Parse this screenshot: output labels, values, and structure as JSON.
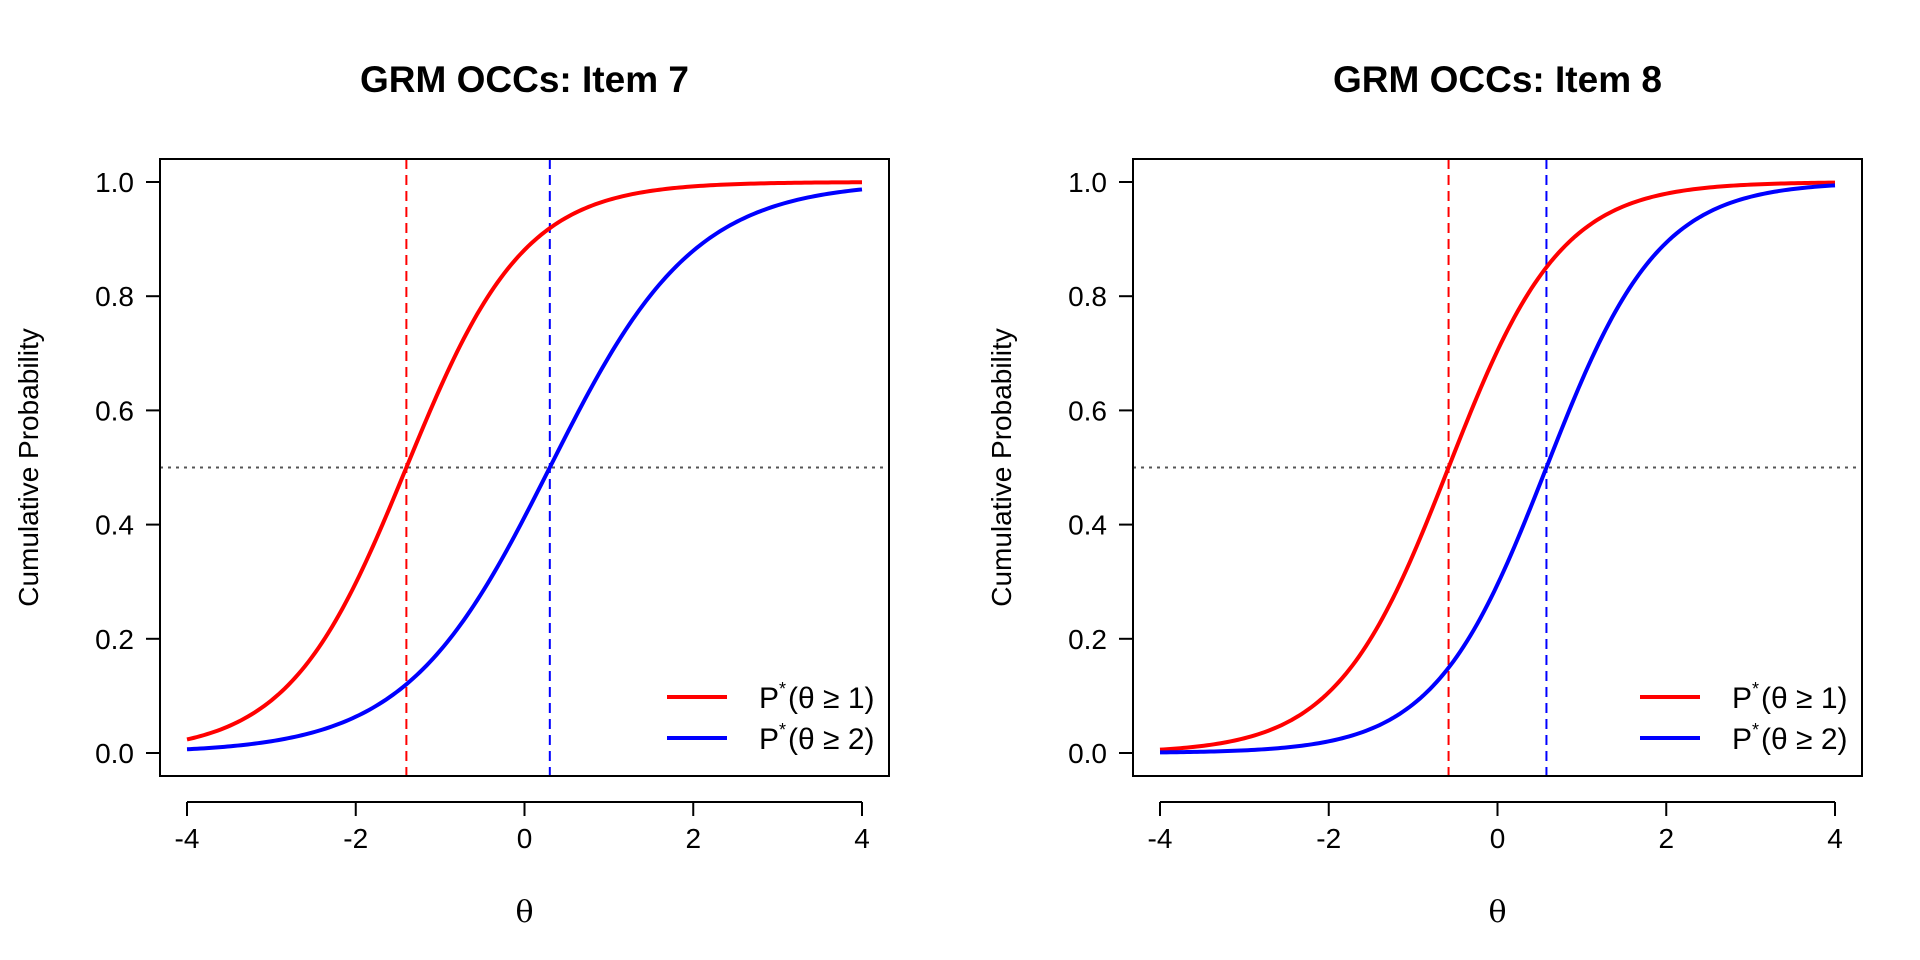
{
  "colors": {
    "p1": "#ff0000",
    "p2": "#0000ff",
    "ref": "#555555",
    "axis": "#000000"
  },
  "legend": {
    "position": "bottom-right",
    "entries": [
      {
        "base": "P",
        "sup": "*",
        "expr": "(θ ≥ 1)",
        "color": "#ff0000"
      },
      {
        "base": "P",
        "sup": "*",
        "expr": "(θ ≥ 2)",
        "color": "#0000ff"
      }
    ]
  },
  "chart_data": [
    {
      "type": "line",
      "title": "GRM OCCs: Item 7",
      "xlabel": "θ",
      "ylabel": "Cumulative Probability",
      "xlim": [
        -4,
        4
      ],
      "ylim": [
        0,
        1
      ],
      "xticks": [
        -4,
        -2,
        0,
        2,
        4
      ],
      "xtick_labels": [
        "-4",
        "-2",
        "0",
        "2",
        "4"
      ],
      "yticks": [
        0,
        0.2,
        0.4,
        0.6,
        0.8,
        1
      ],
      "ytick_labels": [
        "0.0",
        "0.2",
        "0.4",
        "0.6",
        "0.8",
        "1.0"
      ],
      "hline": 0.5,
      "grid": false,
      "series": [
        {
          "name": "P*(θ ≥ 1)",
          "color": "#ff0000",
          "a": 1.43,
          "b": -1.4,
          "threshold": -1.4
        },
        {
          "name": "P*(θ ≥ 2)",
          "color": "#0000ff",
          "a": 1.17,
          "b": 0.3,
          "threshold": 0.3
        }
      ]
    },
    {
      "type": "line",
      "title": "GRM OCCs: Item 8",
      "xlabel": "θ",
      "ylabel": "Cumulative Probability",
      "xlim": [
        -4,
        4
      ],
      "ylim": [
        0,
        1
      ],
      "xticks": [
        -4,
        -2,
        0,
        2,
        4
      ],
      "xtick_labels": [
        "-4",
        "-2",
        "0",
        "2",
        "4"
      ],
      "yticks": [
        0,
        0.2,
        0.4,
        0.6,
        0.8,
        1
      ],
      "ytick_labels": [
        "0.0",
        "0.2",
        "0.4",
        "0.6",
        "0.8",
        "1.0"
      ],
      "hline": 0.5,
      "grid": false,
      "series": [
        {
          "name": "P*(θ ≥ 1)",
          "color": "#ff0000",
          "a": 1.5,
          "b": -0.58,
          "threshold": -0.58
        },
        {
          "name": "P*(θ ≥ 2)",
          "color": "#0000ff",
          "a": 1.5,
          "b": 0.58,
          "threshold": 0.58
        }
      ]
    }
  ]
}
